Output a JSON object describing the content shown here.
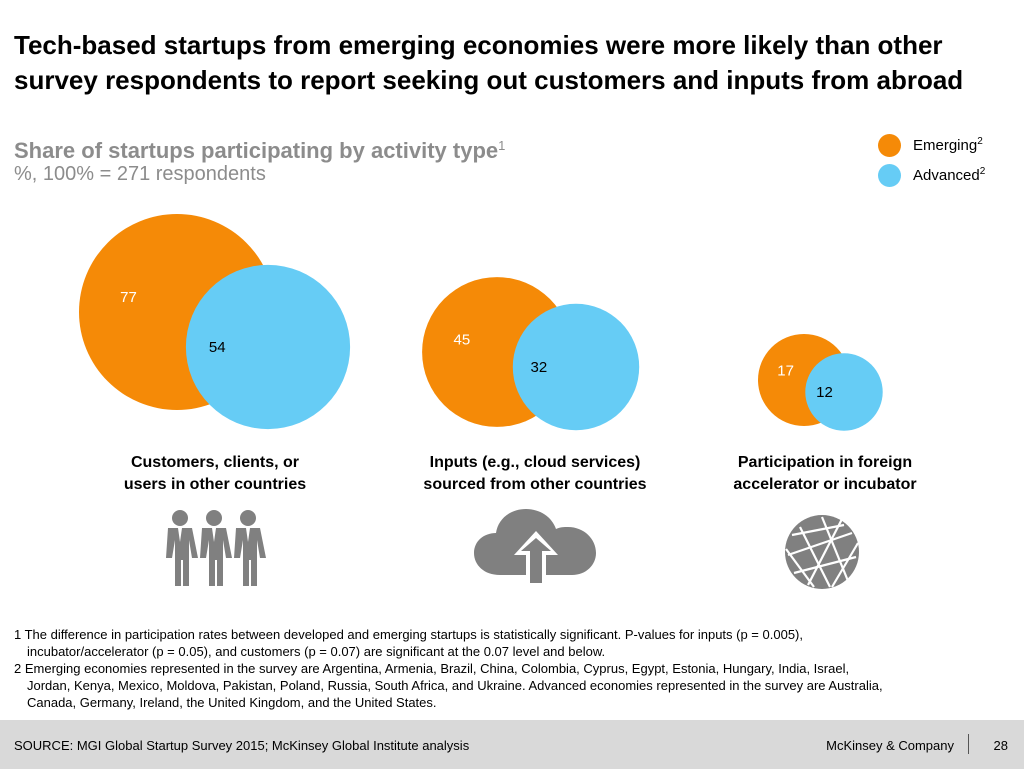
{
  "title": "Tech-based startups from emerging economies were more likely than other survey respondents to report seeking out customers and inputs from abroad",
  "subtitle": "Share of startups participating by activity type",
  "subtitle_note": "1",
  "unit": "%, 100% = 271 respondents",
  "colors": {
    "emerging": "#f58a07",
    "advanced": "#66ccf5",
    "icon": "#808080"
  },
  "legend": [
    {
      "label": "Emerging",
      "note": "2",
      "color": "#f58a07"
    },
    {
      "label": "Advanced",
      "note": "2",
      "color": "#66ccf5"
    }
  ],
  "chart_data": {
    "type": "bubble",
    "series": [
      {
        "name": "Emerging",
        "values": [
          77,
          45,
          17
        ]
      },
      {
        "name": "Advanced",
        "values": [
          54,
          32,
          12
        ]
      }
    ],
    "categories": [
      {
        "line1": "Customers, clients, or",
        "line2": "users in other countries",
        "icon": "people-icon"
      },
      {
        "line1": "Inputs (e.g., cloud services)",
        "line2": "sourced from other countries",
        "icon": "cloud-upload-icon"
      },
      {
        "line1": "Participation in foreign",
        "line2": "accelerator or incubator",
        "icon": "globe-icon"
      }
    ]
  },
  "footnotes": [
    {
      "line1": "1 The difference in participation rates between developed and emerging startups is statistically significant. P-values for inputs (p = 0.005),",
      "line2": "incubator/accelerator (p = 0.05), and customers (p = 0.07) are significant at the 0.07 level and below."
    },
    {
      "line1": "2 Emerging economies represented in the survey are Argentina, Armenia, Brazil, China, Colombia, Cyprus, Egypt, Estonia, Hungary, India, Israel,",
      "line2": "Jordan, Kenya, Mexico, Moldova, Pakistan, Poland, Russia, South Africa, and Ukraine. Advanced economies represented in the survey are Australia,",
      "line3": "Canada, Germany, Ireland, the United Kingdom, and the United States."
    }
  ],
  "footer": {
    "source": "SOURCE: MGI Global Startup Survey 2015; McKinsey Global Institute analysis",
    "company": "McKinsey & Company",
    "page": "28"
  }
}
